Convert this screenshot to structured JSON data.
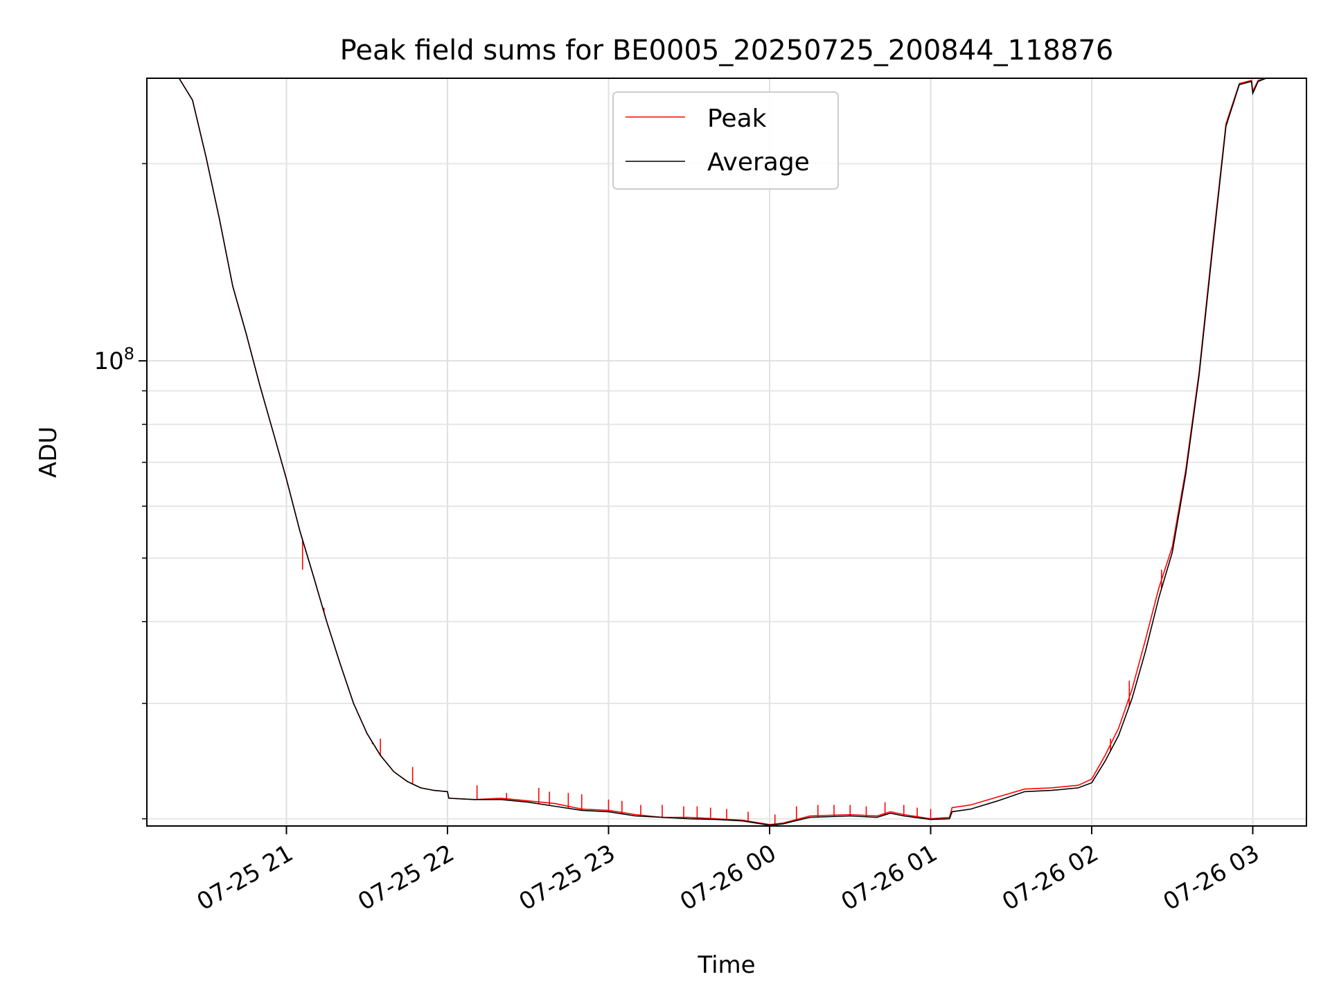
{
  "chart_data": {
    "type": "line",
    "title": "Peak field sums for BE0005_20250725_200844_118876",
    "xlabel": "Time",
    "ylabel": "ADU",
    "y_scale": "log",
    "ylim": [
      19500000,
      270000000
    ],
    "y_major_ticks": [
      {
        "value": 100000000,
        "base": "10",
        "exponent": "8"
      }
    ],
    "y_minor_ticks": [
      20000000,
      30000000,
      40000000,
      50000000,
      60000000,
      70000000,
      80000000,
      90000000,
      200000000
    ],
    "xlim": [
      "2025-07-25T20:08:00",
      "2025-07-26T03:20:00"
    ],
    "x_ticks": [
      {
        "time": "2025-07-25T21:00:00",
        "label": "07-25 21"
      },
      {
        "time": "2025-07-25T22:00:00",
        "label": "07-25 22"
      },
      {
        "time": "2025-07-25T23:00:00",
        "label": "07-25 23"
      },
      {
        "time": "2025-07-26T00:00:00",
        "label": "07-26 00"
      },
      {
        "time": "2025-07-26T01:00:00",
        "label": "07-26 01"
      },
      {
        "time": "2025-07-26T02:00:00",
        "label": "07-26 02"
      },
      {
        "time": "2025-07-26T03:00:00",
        "label": "07-26 03"
      }
    ],
    "grid": true,
    "legend_position": "top-center",
    "series": [
      {
        "name": "Peak",
        "color": "#ff0000",
        "points": [
          [
            "2025-07-25T20:08:00",
            270000000
          ],
          [
            "2025-07-25T20:20:00",
            270000000
          ],
          [
            "2025-07-25T20:25:00",
            250000000
          ],
          [
            "2025-07-25T20:30:00",
            205000000
          ],
          [
            "2025-07-25T20:35:00",
            165000000
          ],
          [
            "2025-07-25T20:40:00",
            130000000
          ],
          [
            "2025-07-25T20:45:00",
            110000000
          ],
          [
            "2025-07-25T20:50:00",
            92000000
          ],
          [
            "2025-07-25T20:55:00",
            78000000
          ],
          [
            "2025-07-25T21:00:00",
            66000000
          ],
          [
            "2025-07-25T21:05:00",
            55000000
          ],
          [
            "2025-07-25T21:10:00",
            47000000
          ],
          [
            "2025-07-25T21:15:00",
            40000000
          ],
          [
            "2025-07-25T21:20:00",
            34500000
          ],
          [
            "2025-07-25T21:25:00",
            30000000
          ],
          [
            "2025-07-25T21:30:00",
            27000000
          ],
          [
            "2025-07-25T21:35:00",
            25000000
          ],
          [
            "2025-07-25T21:40:00",
            23600000
          ],
          [
            "2025-07-25T21:45:00",
            22800000
          ],
          [
            "2025-07-25T21:50:00",
            22300000
          ],
          [
            "2025-07-25T21:55:00",
            22100000
          ],
          [
            "2025-07-25T22:00:00",
            22000000
          ],
          [
            "2025-07-25T22:00:30",
            21500000
          ],
          [
            "2025-07-25T22:10:00",
            21400000
          ],
          [
            "2025-07-25T22:20:00",
            21500000
          ],
          [
            "2025-07-25T22:30:00",
            21300000
          ],
          [
            "2025-07-25T22:40:00",
            21100000
          ],
          [
            "2025-07-25T22:50:00",
            20700000
          ],
          [
            "2025-07-25T23:00:00",
            20600000
          ],
          [
            "2025-07-25T23:10:00",
            20300000
          ],
          [
            "2025-07-25T23:20:00",
            20100000
          ],
          [
            "2025-07-25T23:30:00",
            20100000
          ],
          [
            "2025-07-25T23:40:00",
            20000000
          ],
          [
            "2025-07-25T23:50:00",
            19900000
          ],
          [
            "2025-07-26T00:00:00",
            19600000
          ],
          [
            "2025-07-26T00:05:00",
            19700000
          ],
          [
            "2025-07-26T00:15:00",
            20200000
          ],
          [
            "2025-07-26T00:30:00",
            20300000
          ],
          [
            "2025-07-26T00:40:00",
            20200000
          ],
          [
            "2025-07-26T00:45:00",
            20500000
          ],
          [
            "2025-07-26T00:50:00",
            20300000
          ],
          [
            "2025-07-26T01:00:00",
            20000000
          ],
          [
            "2025-07-26T01:07:00",
            20100000
          ],
          [
            "2025-07-26T01:08:00",
            20800000
          ],
          [
            "2025-07-26T01:15:00",
            21000000
          ],
          [
            "2025-07-26T01:25:00",
            21600000
          ],
          [
            "2025-07-26T01:35:00",
            22200000
          ],
          [
            "2025-07-26T01:45:00",
            22300000
          ],
          [
            "2025-07-26T01:55:00",
            22500000
          ],
          [
            "2025-07-26T02:00:00",
            23000000
          ],
          [
            "2025-07-26T02:05:00",
            25000000
          ],
          [
            "2025-07-26T02:10:00",
            27500000
          ],
          [
            "2025-07-26T02:15:00",
            31500000
          ],
          [
            "2025-07-26T02:20:00",
            37500000
          ],
          [
            "2025-07-26T02:25:00",
            45000000
          ],
          [
            "2025-07-26T02:30:00",
            52000000
          ],
          [
            "2025-07-26T02:35:00",
            68000000
          ],
          [
            "2025-07-26T02:40:00",
            96000000
          ],
          [
            "2025-07-26T02:45:00",
            150000000
          ],
          [
            "2025-07-26T02:50:00",
            230000000
          ],
          [
            "2025-07-26T02:55:00",
            265000000
          ],
          [
            "2025-07-26T02:59:30",
            268000000
          ],
          [
            "2025-07-26T03:00:00",
            258000000
          ],
          [
            "2025-07-26T03:02:00",
            268000000
          ],
          [
            "2025-07-26T03:05:00",
            270000000
          ]
        ],
        "spikes": [
          [
            "2025-07-25T21:06:00",
            48000000
          ],
          [
            "2025-07-25T21:14:00",
            42000000
          ],
          [
            "2025-07-25T21:32:00",
            26000000
          ],
          [
            "2025-07-25T21:35:00",
            26500000
          ],
          [
            "2025-07-25T21:47:00",
            24000000
          ],
          [
            "2025-07-25T22:11:00",
            22500000
          ],
          [
            "2025-07-25T22:22:00",
            21900000
          ],
          [
            "2025-07-25T22:34:00",
            22300000
          ],
          [
            "2025-07-25T22:38:00",
            22000000
          ],
          [
            "2025-07-25T22:45:00",
            21900000
          ],
          [
            "2025-07-25T22:50:00",
            21800000
          ],
          [
            "2025-07-25T23:00:00",
            21400000
          ],
          [
            "2025-07-25T23:05:00",
            21300000
          ],
          [
            "2025-07-25T23:12:00",
            21000000
          ],
          [
            "2025-07-25T23:20:00",
            21000000
          ],
          [
            "2025-07-25T23:28:00",
            20900000
          ],
          [
            "2025-07-25T23:33:00",
            20900000
          ],
          [
            "2025-07-25T23:38:00",
            20800000
          ],
          [
            "2025-07-25T23:44:00",
            20700000
          ],
          [
            "2025-07-25T23:52:00",
            20500000
          ],
          [
            "2025-07-26T00:02:00",
            20300000
          ],
          [
            "2025-07-26T00:10:00",
            20900000
          ],
          [
            "2025-07-26T00:18:00",
            21000000
          ],
          [
            "2025-07-26T00:24:00",
            21000000
          ],
          [
            "2025-07-26T00:30:00",
            21000000
          ],
          [
            "2025-07-26T00:36:00",
            20900000
          ],
          [
            "2025-07-26T00:43:00",
            21200000
          ],
          [
            "2025-07-26T00:50:00",
            21000000
          ],
          [
            "2025-07-26T00:55:00",
            20800000
          ],
          [
            "2025-07-26T01:00:00",
            20700000
          ],
          [
            "2025-07-26T02:07:00",
            26500000
          ],
          [
            "2025-07-26T02:14:00",
            32500000
          ],
          [
            "2025-07-26T02:26:00",
            48000000
          ]
        ]
      },
      {
        "name": "Average",
        "color": "#000000",
        "points": [
          [
            "2025-07-25T20:08:00",
            270000000
          ],
          [
            "2025-07-25T20:20:00",
            270000000
          ],
          [
            "2025-07-25T20:25:00",
            250000000
          ],
          [
            "2025-07-25T20:30:00",
            205000000
          ],
          [
            "2025-07-25T20:35:00",
            165000000
          ],
          [
            "2025-07-25T20:40:00",
            130000000
          ],
          [
            "2025-07-25T20:45:00",
            110000000
          ],
          [
            "2025-07-25T20:50:00",
            92000000
          ],
          [
            "2025-07-25T20:55:00",
            78000000
          ],
          [
            "2025-07-25T21:00:00",
            66000000
          ],
          [
            "2025-07-25T21:05:00",
            55000000
          ],
          [
            "2025-07-25T21:10:00",
            47000000
          ],
          [
            "2025-07-25T21:15:00",
            40000000
          ],
          [
            "2025-07-25T21:20:00",
            34500000
          ],
          [
            "2025-07-25T21:25:00",
            30000000
          ],
          [
            "2025-07-25T21:30:00",
            27000000
          ],
          [
            "2025-07-25T21:35:00",
            25000000
          ],
          [
            "2025-07-25T21:40:00",
            23600000
          ],
          [
            "2025-07-25T21:45:00",
            22800000
          ],
          [
            "2025-07-25T21:50:00",
            22300000
          ],
          [
            "2025-07-25T21:55:00",
            22100000
          ],
          [
            "2025-07-25T22:00:00",
            22000000
          ],
          [
            "2025-07-25T22:00:30",
            21500000
          ],
          [
            "2025-07-25T22:10:00",
            21400000
          ],
          [
            "2025-07-25T22:20:00",
            21400000
          ],
          [
            "2025-07-25T22:30:00",
            21200000
          ],
          [
            "2025-07-25T22:40:00",
            20900000
          ],
          [
            "2025-07-25T22:50:00",
            20600000
          ],
          [
            "2025-07-25T23:00:00",
            20500000
          ],
          [
            "2025-07-25T23:10:00",
            20200000
          ],
          [
            "2025-07-25T23:20:00",
            20100000
          ],
          [
            "2025-07-25T23:30:00",
            20000000
          ],
          [
            "2025-07-25T23:40:00",
            19950000
          ],
          [
            "2025-07-25T23:50:00",
            19850000
          ],
          [
            "2025-07-26T00:00:00",
            19550000
          ],
          [
            "2025-07-26T00:05:00",
            19650000
          ],
          [
            "2025-07-26T00:15:00",
            20100000
          ],
          [
            "2025-07-26T00:30:00",
            20200000
          ],
          [
            "2025-07-26T00:40:00",
            20100000
          ],
          [
            "2025-07-26T00:45:00",
            20400000
          ],
          [
            "2025-07-26T00:50:00",
            20200000
          ],
          [
            "2025-07-26T01:00:00",
            19950000
          ],
          [
            "2025-07-26T01:07:00",
            20000000
          ],
          [
            "2025-07-26T01:08:00",
            20500000
          ],
          [
            "2025-07-26T01:15:00",
            20700000
          ],
          [
            "2025-07-26T01:25:00",
            21300000
          ],
          [
            "2025-07-26T01:35:00",
            22000000
          ],
          [
            "2025-07-26T01:45:00",
            22100000
          ],
          [
            "2025-07-26T01:55:00",
            22300000
          ],
          [
            "2025-07-26T02:00:00",
            22700000
          ],
          [
            "2025-07-26T02:05:00",
            24500000
          ],
          [
            "2025-07-26T02:10:00",
            26800000
          ],
          [
            "2025-07-26T02:15:00",
            30500000
          ],
          [
            "2025-07-26T02:20:00",
            36000000
          ],
          [
            "2025-07-26T02:25:00",
            43500000
          ],
          [
            "2025-07-26T02:30:00",
            51000000
          ],
          [
            "2025-07-26T02:35:00",
            67000000
          ],
          [
            "2025-07-26T02:40:00",
            95000000
          ],
          [
            "2025-07-26T02:45:00",
            148000000
          ],
          [
            "2025-07-26T02:50:00",
            228000000
          ],
          [
            "2025-07-26T02:55:00",
            264000000
          ],
          [
            "2025-07-26T02:59:30",
            267000000
          ],
          [
            "2025-07-26T03:00:00",
            256000000
          ],
          [
            "2025-07-26T03:02:00",
            267000000
          ],
          [
            "2025-07-26T03:05:00",
            270000000
          ]
        ]
      }
    ]
  }
}
